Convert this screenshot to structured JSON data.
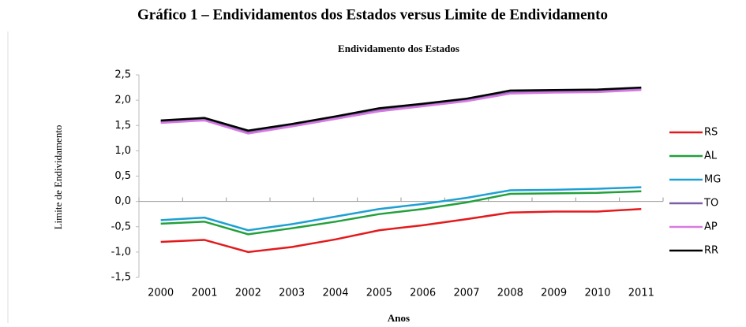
{
  "heading": "Gráfico 1 – Endividamentos dos Estados versus Limite de Endividamento",
  "chart_data": {
    "type": "line",
    "title": "Endividamento dos Estados",
    "x_label": "Anos",
    "y_label": "Limite de Endividamento",
    "categories": [
      "2000",
      "2001",
      "2002",
      "2003",
      "2004",
      "2005",
      "2006",
      "2007",
      "2008",
      "2009",
      "2010",
      "2011"
    ],
    "series": [
      {
        "name": "RS",
        "color": "#e31a1c",
        "values": [
          -0.8,
          -0.76,
          -1.0,
          -0.9,
          -0.75,
          -0.57,
          -0.47,
          -0.35,
          -0.22,
          -0.2,
          -0.2,
          -0.15
        ]
      },
      {
        "name": "AL",
        "color": "#22a03c",
        "values": [
          -0.44,
          -0.4,
          -0.65,
          -0.53,
          -0.4,
          -0.25,
          -0.15,
          -0.02,
          0.15,
          0.16,
          0.17,
          0.2
        ]
      },
      {
        "name": "MG",
        "color": "#1ea0d2",
        "values": [
          -0.37,
          -0.32,
          -0.57,
          -0.45,
          -0.3,
          -0.15,
          -0.05,
          0.07,
          0.22,
          0.23,
          0.25,
          0.28
        ]
      },
      {
        "name": "TO",
        "color": "#7b5ea7",
        "values": [
          1.57,
          1.62,
          1.36,
          1.5,
          1.65,
          1.8,
          1.9,
          2.0,
          2.15,
          2.17,
          2.18,
          2.22
        ]
      },
      {
        "name": "AP",
        "color": "#d77be0",
        "values": [
          1.55,
          1.6,
          1.34,
          1.48,
          1.63,
          1.78,
          1.88,
          1.98,
          2.13,
          2.15,
          2.16,
          2.2
        ]
      },
      {
        "name": "RR",
        "color": "#000000",
        "values": [
          1.6,
          1.65,
          1.4,
          1.53,
          1.68,
          1.84,
          1.93,
          2.03,
          2.19,
          2.2,
          2.21,
          2.25
        ]
      }
    ],
    "ylim": [
      -1.5,
      2.5
    ],
    "yticks": [
      {
        "value": -1.5,
        "label": "-1,5"
      },
      {
        "value": -1.0,
        "label": "-1,0"
      },
      {
        "value": -0.5,
        "label": "-0,5"
      },
      {
        "value": 0,
        "label": "0,0"
      },
      {
        "value": 0.5,
        "label": "0,5"
      },
      {
        "value": 1.0,
        "label": "1,0"
      },
      {
        "value": 1.5,
        "label": "1,5"
      },
      {
        "value": 2.0,
        "label": "2,0"
      },
      {
        "value": 2.5,
        "label": "2,5"
      }
    ],
    "grid": false,
    "legend": "right"
  }
}
